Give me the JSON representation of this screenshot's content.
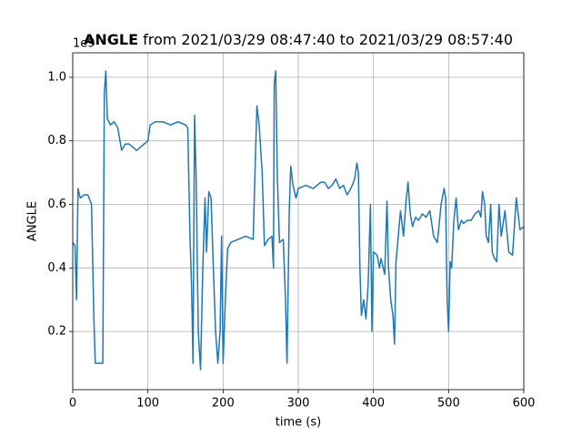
{
  "chart_data": {
    "type": "line",
    "title_parts": [
      "ANGLE",
      "from 2021/03/29 08:47:40 to 2021/03/29 08:57:40"
    ],
    "xlabel": "time (s)",
    "ylabel": "ANGLE",
    "y_offset_label": "1e9",
    "x": [
      0,
      3,
      5,
      7,
      10,
      15,
      20,
      25,
      28,
      30,
      35,
      40,
      42,
      44,
      46,
      50,
      55,
      60,
      65,
      70,
      75,
      80,
      85,
      90,
      95,
      100,
      103,
      110,
      120,
      130,
      140,
      150,
      153,
      156,
      158,
      160,
      162,
      164,
      167,
      170,
      173,
      176,
      178,
      181,
      184,
      187,
      190,
      193,
      196,
      198,
      200,
      203,
      206,
      210,
      220,
      230,
      240,
      243,
      245,
      248,
      252,
      255,
      260,
      265,
      267,
      268,
      270,
      272,
      275,
      280,
      283,
      285,
      288,
      290,
      293,
      297,
      300,
      310,
      320,
      330,
      335,
      340,
      345,
      350,
      355,
      360,
      365,
      370,
      375,
      378,
      380,
      382,
      384,
      387,
      390,
      393,
      396,
      398,
      400,
      405,
      408,
      410,
      415,
      418,
      420,
      423,
      426,
      428,
      430,
      433,
      436,
      440,
      443,
      446,
      449,
      452,
      456,
      460,
      465,
      470,
      475,
      480,
      485,
      490,
      494,
      496,
      498,
      500,
      502,
      504,
      507,
      510,
      513,
      517,
      520,
      525,
      530,
      535,
      540,
      543,
      545,
      548,
      550,
      553,
      556,
      558,
      561,
      564,
      567,
      570,
      575,
      580,
      585,
      590,
      595,
      600
    ],
    "series": [
      {
        "name": "ANGLE",
        "color": "#1f77b4",
        "values": [
          0.48,
          0.47,
          0.3,
          0.65,
          0.62,
          0.63,
          0.63,
          0.6,
          0.25,
          0.1,
          0.1,
          0.1,
          0.95,
          1.02,
          0.87,
          0.85,
          0.86,
          0.84,
          0.77,
          0.79,
          0.79,
          0.78,
          0.77,
          0.78,
          0.79,
          0.8,
          0.85,
          0.86,
          0.86,
          0.85,
          0.86,
          0.85,
          0.84,
          0.5,
          0.35,
          0.1,
          0.88,
          0.7,
          0.2,
          0.08,
          0.4,
          0.62,
          0.45,
          0.64,
          0.62,
          0.4,
          0.2,
          0.1,
          0.2,
          0.5,
          0.1,
          0.3,
          0.46,
          0.48,
          0.49,
          0.5,
          0.49,
          0.75,
          0.91,
          0.85,
          0.7,
          0.47,
          0.49,
          0.5,
          0.4,
          0.98,
          1.02,
          0.7,
          0.48,
          0.49,
          0.3,
          0.1,
          0.58,
          0.72,
          0.66,
          0.62,
          0.65,
          0.66,
          0.65,
          0.67,
          0.67,
          0.65,
          0.66,
          0.68,
          0.65,
          0.66,
          0.63,
          0.65,
          0.68,
          0.73,
          0.7,
          0.4,
          0.25,
          0.3,
          0.24,
          0.35,
          0.6,
          0.2,
          0.45,
          0.44,
          0.4,
          0.43,
          0.38,
          0.61,
          0.4,
          0.3,
          0.25,
          0.16,
          0.42,
          0.5,
          0.58,
          0.5,
          0.6,
          0.67,
          0.57,
          0.53,
          0.56,
          0.55,
          0.57,
          0.56,
          0.58,
          0.5,
          0.48,
          0.6,
          0.65,
          0.62,
          0.3,
          0.2,
          0.42,
          0.4,
          0.55,
          0.62,
          0.52,
          0.55,
          0.54,
          0.55,
          0.55,
          0.57,
          0.58,
          0.56,
          0.64,
          0.6,
          0.5,
          0.48,
          0.6,
          0.45,
          0.43,
          0.42,
          0.6,
          0.5,
          0.58,
          0.45,
          0.44,
          0.62,
          0.52,
          0.53
        ]
      }
    ],
    "xlim": [
      0,
      600
    ],
    "xticks": [
      0,
      100,
      200,
      300,
      400,
      500,
      600
    ],
    "ylim": [
      0.017,
      1.077
    ],
    "yticks": [
      0.2,
      0.4,
      0.6,
      0.8,
      {
        "value": 1,
        "label": "1.0"
      }
    ],
    "grid": true
  }
}
